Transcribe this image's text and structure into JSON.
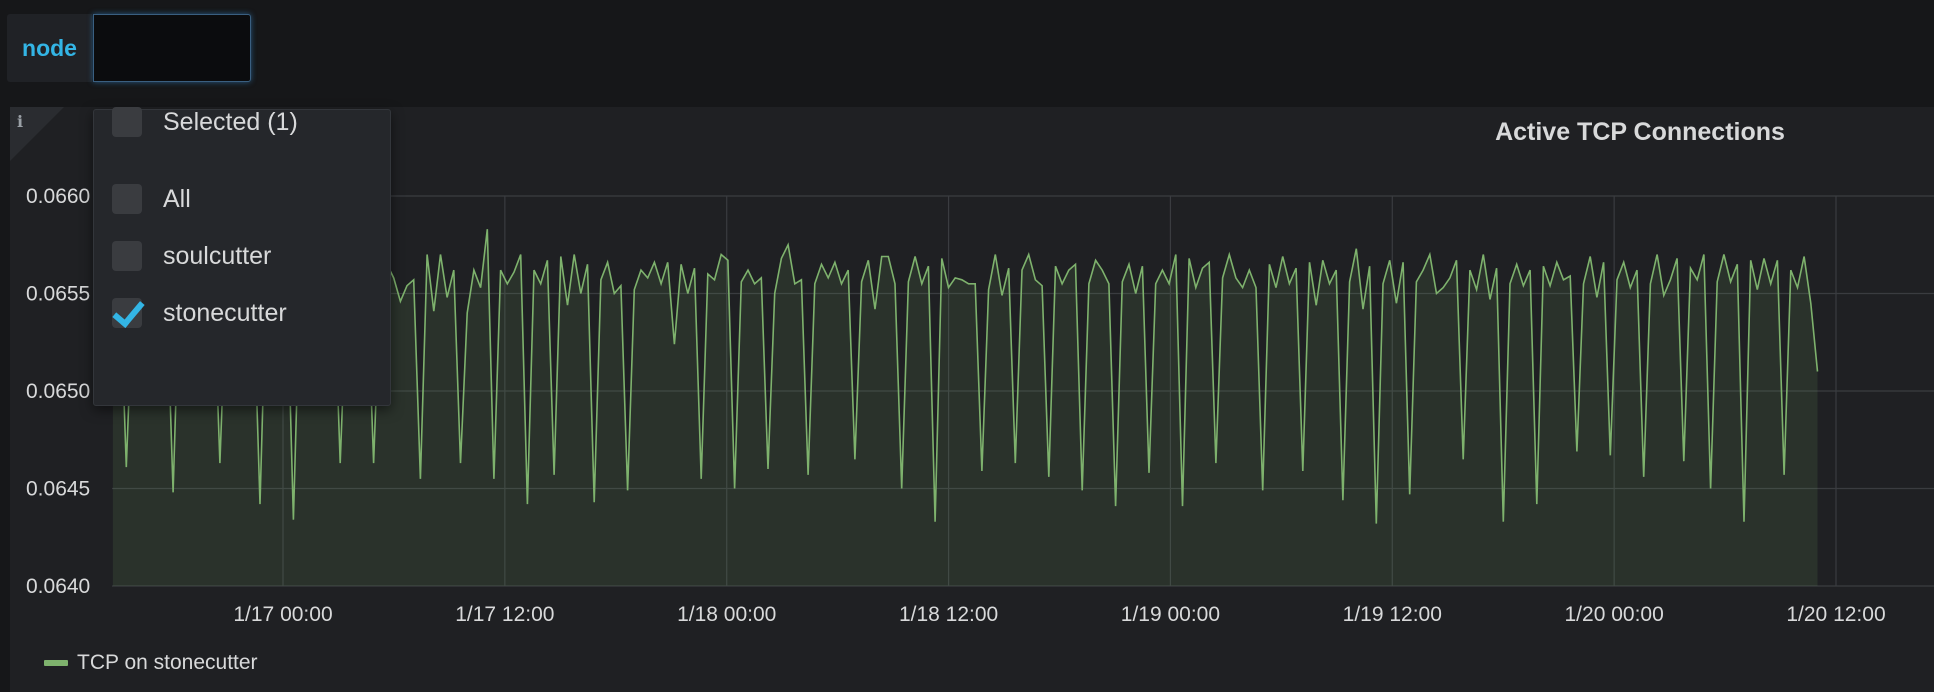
{
  "variable": {
    "label": "node",
    "value": ""
  },
  "dropdown": {
    "selected_label": "Selected (1)",
    "options": [
      {
        "label": "All",
        "checked": false
      },
      {
        "label": "soulcutter",
        "checked": false
      },
      {
        "label": "stonecutter",
        "checked": true
      }
    ]
  },
  "panel": {
    "title": "Active TCP Connections",
    "info_icon": "info-icon"
  },
  "legend": {
    "label": "TCP on stonecutter",
    "color": "#7eb26d"
  },
  "chart_data": {
    "type": "area",
    "title": "Active TCP Connections",
    "xlabel": "",
    "ylabel": "",
    "ylim": [
      0.064,
      0.066
    ],
    "y_ticks": [
      "0.0640",
      "0.0645",
      "0.0650",
      "0.0655",
      "0.0660"
    ],
    "y_tick_values": [
      0.064,
      0.0645,
      0.065,
      0.0655,
      0.066
    ],
    "x_ticks": [
      "1/17 00:00",
      "1/17 12:00",
      "1/18 00:00",
      "1/18 12:00",
      "1/19 00:00",
      "1/19 12:00",
      "1/20 00:00",
      "1/20 12:00"
    ],
    "x_tick_hours": [
      0,
      12,
      24,
      36,
      48,
      60,
      72,
      84
    ],
    "xlim_hours": [
      -9.2,
      86
    ],
    "series": [
      {
        "name": "TCP on stonecutter",
        "color": "#7eb26d",
        "x_start_hours": -9.2,
        "x_end_hours": 83,
        "values": [
          0.06558,
          0.06562,
          0.06461,
          0.06552,
          0.06562,
          0.06555,
          0.06556,
          0.06565,
          0.06556,
          0.06448,
          0.06563,
          0.06553,
          0.06558,
          0.06566,
          0.06554,
          0.06562,
          0.06463,
          0.06556,
          0.06562,
          0.06567,
          0.06555,
          0.06554,
          0.06442,
          0.06566,
          0.06555,
          0.06556,
          0.06562,
          0.06434,
          0.06558,
          0.06569,
          0.06555,
          0.06562,
          0.06556,
          0.06564,
          0.06463,
          0.06555,
          0.06567,
          0.06554,
          0.06562,
          0.06463,
          0.06556,
          0.06565,
          0.06558,
          0.06546,
          0.06554,
          0.06557,
          0.06455,
          0.0657,
          0.06541,
          0.0657,
          0.06548,
          0.06562,
          0.06463,
          0.0654,
          0.06562,
          0.06553,
          0.06583,
          0.06455,
          0.06562,
          0.06555,
          0.06561,
          0.0657,
          0.06442,
          0.06562,
          0.06555,
          0.06567,
          0.06457,
          0.06569,
          0.06544,
          0.0657,
          0.0655,
          0.06565,
          0.06443,
          0.06557,
          0.06566,
          0.0655,
          0.06554,
          0.06449,
          0.06552,
          0.06562,
          0.06558,
          0.06566,
          0.06555,
          0.06566,
          0.06524,
          0.06565,
          0.0655,
          0.06563,
          0.06455,
          0.0656,
          0.06557,
          0.0657,
          0.06567,
          0.0645,
          0.06556,
          0.06562,
          0.06555,
          0.06558,
          0.0646,
          0.0655,
          0.06568,
          0.06575,
          0.06555,
          0.06557,
          0.06457,
          0.06555,
          0.06565,
          0.06558,
          0.06566,
          0.06555,
          0.06562,
          0.06465,
          0.06556,
          0.06567,
          0.06542,
          0.06569,
          0.06569,
          0.06555,
          0.0645,
          0.06556,
          0.06569,
          0.06555,
          0.06564,
          0.06433,
          0.06568,
          0.06553,
          0.06558,
          0.06557,
          0.06555,
          0.06555,
          0.06459,
          0.06552,
          0.0657,
          0.06549,
          0.06563,
          0.06463,
          0.06562,
          0.0657,
          0.06557,
          0.06554,
          0.06456,
          0.06564,
          0.06555,
          0.06562,
          0.06565,
          0.06449,
          0.06555,
          0.06567,
          0.06562,
          0.06555,
          0.06441,
          0.06556,
          0.06565,
          0.0655,
          0.06564,
          0.06458,
          0.06555,
          0.06562,
          0.06555,
          0.0657,
          0.06441,
          0.06568,
          0.06553,
          0.06563,
          0.06566,
          0.06463,
          0.06558,
          0.0657,
          0.06558,
          0.06553,
          0.06562,
          0.06553,
          0.06449,
          0.06565,
          0.06553,
          0.06569,
          0.06555,
          0.06563,
          0.06459,
          0.06566,
          0.06544,
          0.06567,
          0.06555,
          0.06562,
          0.06444,
          0.06556,
          0.06573,
          0.06542,
          0.06564,
          0.06432,
          0.06555,
          0.06567,
          0.06545,
          0.06566,
          0.06447,
          0.06556,
          0.06562,
          0.0657,
          0.0655,
          0.06553,
          0.06558,
          0.06567,
          0.06465,
          0.06562,
          0.06552,
          0.0657,
          0.06547,
          0.06563,
          0.06433,
          0.06555,
          0.06565,
          0.06554,
          0.06562,
          0.06442,
          0.06564,
          0.06554,
          0.06566,
          0.06557,
          0.06559,
          0.06469,
          0.06555,
          0.06569,
          0.06548,
          0.06566,
          0.06467,
          0.06557,
          0.06566,
          0.06553,
          0.06562,
          0.06456,
          0.06555,
          0.0657,
          0.06549,
          0.06557,
          0.06568,
          0.06464,
          0.06563,
          0.06557,
          0.0657,
          0.0645,
          0.06556,
          0.0657,
          0.06556,
          0.06565,
          0.06433,
          0.06567,
          0.06552,
          0.06568,
          0.06555,
          0.06567,
          0.06457,
          0.06562,
          0.06553,
          0.06569,
          0.06545,
          0.0651
        ]
      }
    ]
  }
}
